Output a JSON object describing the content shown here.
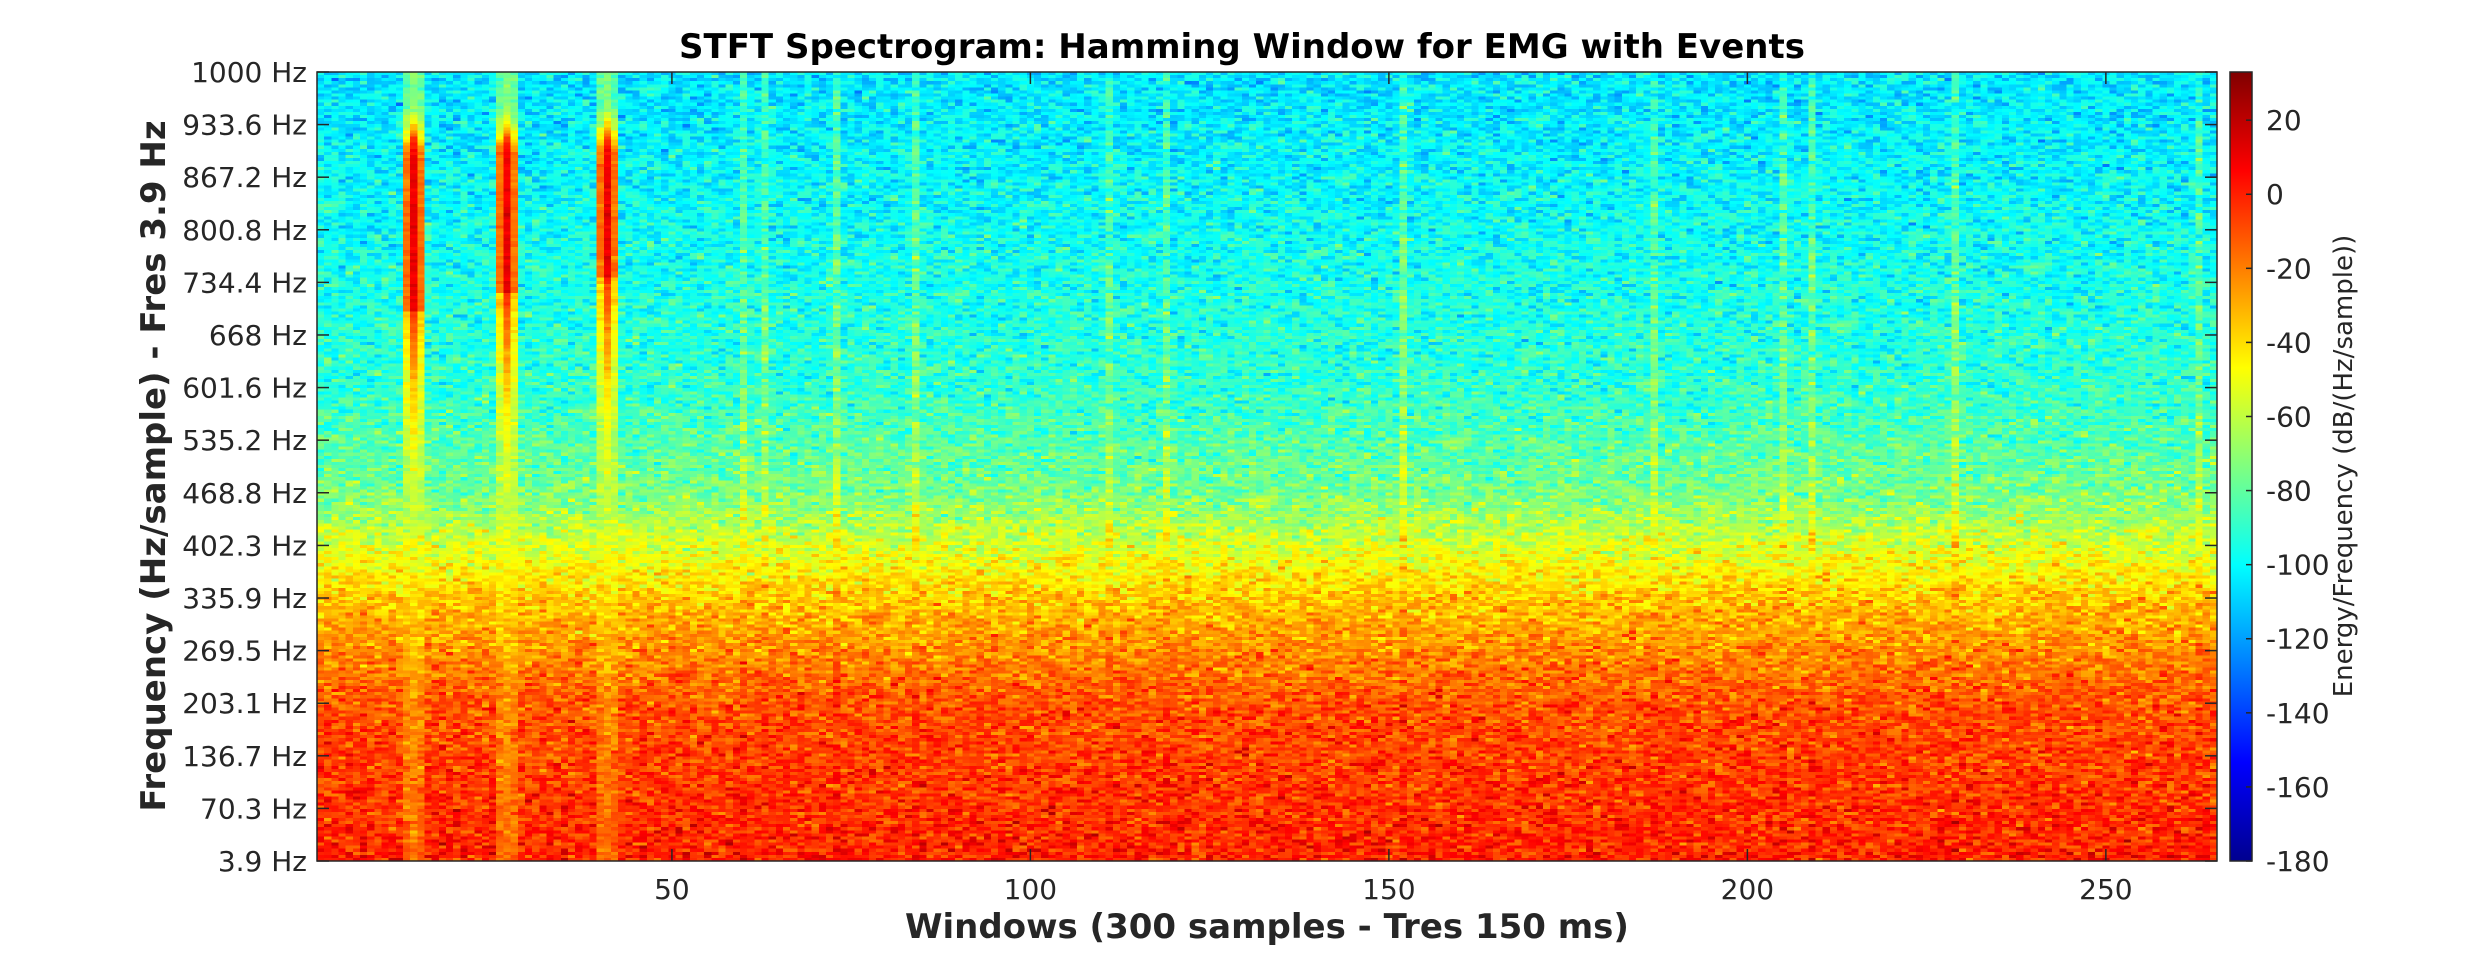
{
  "chart_data": {
    "type": "heatmap",
    "title": "STFT Spectrogram: Hamming Window for EMG with Events",
    "xlabel": "Windows (300 samples - Tres 150 ms)",
    "ylabel": "Frequency (Hz/sample) - Fres 3.9 Hz",
    "colorbar_label": "Energy/Frequency (dB/(Hz/sample))",
    "x_ticks": [
      "50",
      "100",
      "150",
      "200",
      "250"
    ],
    "x_tick_values": [
      50,
      100,
      150,
      200,
      250
    ],
    "xlim": [
      0.5,
      265.5
    ],
    "y_ticks": [
      "3.9 Hz",
      "70.3 Hz",
      "136.7 Hz",
      "203.1 Hz",
      "269.5 Hz",
      "335.9 Hz",
      "402.3 Hz",
      "468.8 Hz",
      "535.2 Hz",
      "601.6 Hz",
      "668 Hz",
      "734.4 Hz",
      "800.8 Hz",
      "867.2 Hz",
      "933.6 Hz",
      "1000 Hz"
    ],
    "y_tick_values": [
      3.9,
      70.3,
      136.7,
      203.1,
      269.5,
      335.9,
      402.3,
      468.8,
      535.2,
      601.6,
      668,
      734.4,
      800.8,
      867.2,
      933.6,
      1000
    ],
    "ylim": [
      3.9,
      1000
    ],
    "colorbar_ticks": [
      "20",
      "0",
      "-20",
      "-40",
      "-60",
      "-80",
      "-100",
      "-120",
      "-140",
      "-160",
      "-180"
    ],
    "colorbar_tick_values": [
      20,
      0,
      -20,
      -40,
      -60,
      -80,
      -100,
      -120,
      -140,
      -160,
      -180
    ],
    "clim": [
      -180,
      33
    ],
    "colormap": "jet",
    "n_windows": 265,
    "n_freq_bins": 257,
    "events": [
      {
        "window": 14,
        "freq_range_hz": [
          700,
          900
        ],
        "peak_db": 10
      },
      {
        "window": 27,
        "freq_range_hz": [
          720,
          900
        ],
        "peak_db": 10
      },
      {
        "window": 41,
        "freq_range_hz": [
          740,
          900
        ],
        "peak_db": 10
      }
    ],
    "background_profile_db": [
      {
        "freq_hz": 3.9,
        "db": 0
      },
      {
        "freq_hz": 200,
        "db": -10
      },
      {
        "freq_hz": 335.9,
        "db": -35
      },
      {
        "freq_hz": 468.8,
        "db": -75
      },
      {
        "freq_hz": 600,
        "db": -90
      },
      {
        "freq_hz": 1000,
        "db": -105
      }
    ]
  }
}
